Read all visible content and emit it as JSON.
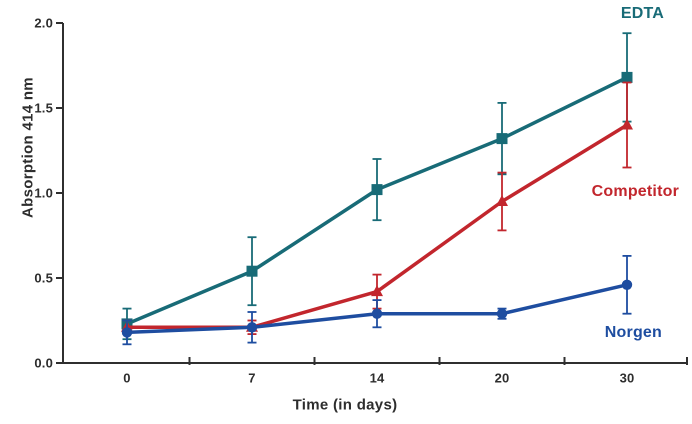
{
  "chart_data": {
    "type": "line",
    "title": "",
    "xlabel": "Time (in days)",
    "ylabel": "Absorption 414 nm",
    "categories": [
      "0",
      "7",
      "14",
      "20",
      "30"
    ],
    "x_values_days": [
      0,
      7,
      14,
      20,
      30
    ],
    "yticks": [
      "0.0",
      "0.5",
      "1.0",
      "1.5",
      "2.0"
    ],
    "ytick_values": [
      0.0,
      0.5,
      1.0,
      1.5,
      2.0
    ],
    "ylim": [
      0.0,
      2.0
    ],
    "grid": false,
    "legend_position": "inline-right",
    "axis_color": "#2f2f2f",
    "series": [
      {
        "name": "EDTA",
        "color": "#186b77",
        "marker": "square",
        "values": [
          0.23,
          0.54,
          1.02,
          1.32,
          1.68
        ],
        "errors": [
          0.09,
          0.2,
          0.18,
          0.21,
          0.26
        ]
      },
      {
        "name": "Competitor",
        "color": "#c2262d",
        "marker": "triangle",
        "values": [
          0.21,
          0.21,
          0.42,
          0.95,
          1.4
        ],
        "errors": [
          0.04,
          0.04,
          0.1,
          0.17,
          0.25
        ]
      },
      {
        "name": "Norgen",
        "color": "#1e4da0",
        "marker": "circle",
        "values": [
          0.18,
          0.21,
          0.29,
          0.29,
          0.46
        ],
        "errors": [
          0.07,
          0.09,
          0.08,
          0.03,
          0.17
        ]
      }
    ]
  }
}
